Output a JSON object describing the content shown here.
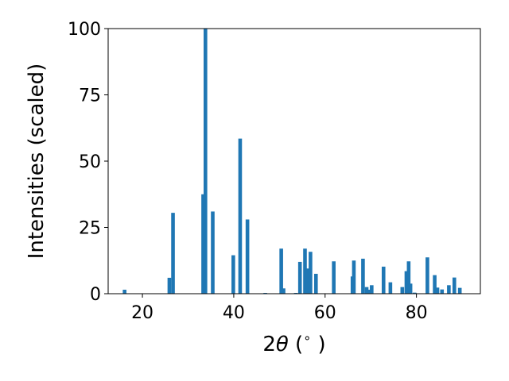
{
  "chart_data": {
    "type": "bar",
    "xlabel": "2θ (°)",
    "xlabel_parts": {
      "pre": "2",
      "theta": "θ",
      "post": " (",
      "degree": "∘",
      "close": " )"
    },
    "ylabel": "Intensities (scaled)",
    "xlim": [
      12.5,
      94.0
    ],
    "ylim": [
      0,
      100
    ],
    "xticks": [
      20,
      40,
      60,
      80
    ],
    "yticks": [
      0,
      25,
      50,
      75,
      100
    ],
    "bar_width": 0.8,
    "color": "#1f77b4",
    "grid": false,
    "legend": "none",
    "x": [
      16.1,
      25.9,
      26.7,
      33.3,
      33.8,
      35.4,
      39.9,
      41.4,
      43.0,
      46.9,
      50.4,
      50.9,
      53.6,
      54.5,
      55.6,
      56.1,
      56.8,
      58.0,
      61.9,
      66.0,
      66.3,
      68.3,
      69.1,
      69.6,
      70.2,
      72.8,
      74.3,
      76.9,
      77.8,
      78.3,
      78.7,
      79.6,
      82.4,
      84.0,
      84.6,
      85.6,
      87.1,
      88.3,
      89.5
    ],
    "values": [
      1.5,
      6.0,
      30.5,
      37.5,
      100,
      31.0,
      14.5,
      58.5,
      28.0,
      0.3,
      17.0,
      2.0,
      0.3,
      12.0,
      17.0,
      9.5,
      15.8,
      7.5,
      12.2,
      6.5,
      12.5,
      13.2,
      2.5,
      1.5,
      3.2,
      10.2,
      4.3,
      2.5,
      8.5,
      12.2,
      3.8,
      0.4,
      13.7,
      7.0,
      2.3,
      1.6,
      3.2,
      6.1,
      2.2
    ]
  }
}
